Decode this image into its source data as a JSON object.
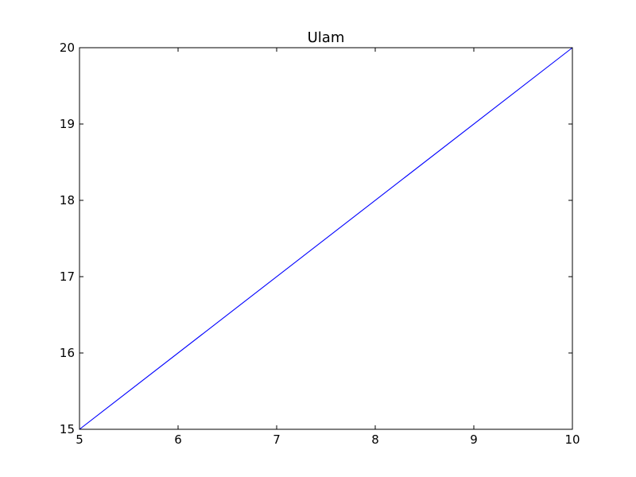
{
  "chart_data": {
    "type": "line",
    "title": "Ulam",
    "xlabel": "",
    "ylabel": "",
    "xlim": [
      5,
      10
    ],
    "ylim": [
      15,
      20
    ],
    "x_ticks": [
      5,
      6,
      7,
      8,
      9,
      10
    ],
    "y_ticks": [
      15,
      16,
      17,
      18,
      19,
      20
    ],
    "grid": false,
    "series": [
      {
        "color": "#0000ff",
        "x": [
          5,
          10
        ],
        "y": [
          15,
          20
        ]
      }
    ]
  }
}
